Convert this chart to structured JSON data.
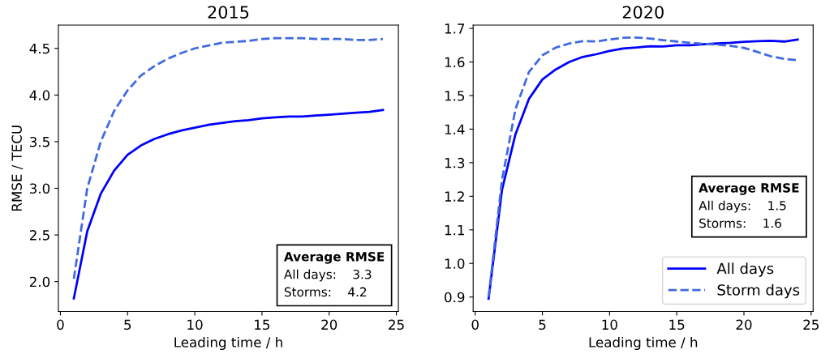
{
  "chart_data": [
    {
      "type": "line",
      "title": "2015",
      "xlabel": "Leading time / h",
      "ylabel": "RMSE / TECU",
      "x": [
        1,
        2,
        3,
        4,
        5,
        6,
        7,
        8,
        9,
        10,
        11,
        12,
        13,
        14,
        15,
        16,
        17,
        18,
        19,
        20,
        21,
        22,
        23,
        24
      ],
      "series": [
        {
          "color": "#0000ff",
          "line_style": "solid",
          "values": [
            1.82,
            2.54,
            2.94,
            3.19,
            3.36,
            3.46,
            3.53,
            3.58,
            3.62,
            3.65,
            3.68,
            3.7,
            3.72,
            3.73,
            3.75,
            3.76,
            3.77,
            3.77,
            3.78,
            3.79,
            3.8,
            3.81,
            3.82,
            3.84
          ]
        },
        {
          "color": "#4169e1",
          "line_style": "dashed",
          "values": [
            2.03,
            3.0,
            3.5,
            3.83,
            4.05,
            4.21,
            4.31,
            4.39,
            4.45,
            4.5,
            4.53,
            4.56,
            4.57,
            4.58,
            4.6,
            4.61,
            4.61,
            4.61,
            4.6,
            4.6,
            4.6,
            4.59,
            4.59,
            4.6
          ]
        }
      ],
      "xlim": [
        -0.15,
        25.15
      ],
      "xticks": [
        0,
        5,
        10,
        15,
        20,
        25
      ],
      "ylim": [
        1.68,
        4.75
      ],
      "yticks": [
        {
          "value": 2,
          "label": "2.0"
        },
        2.5,
        {
          "value": 3,
          "label": "3.0"
        },
        3.5,
        {
          "value": 4,
          "label": "4.0"
        },
        4.5
      ],
      "annotations": [
        "Average RMSE",
        "All days:    3.3",
        "Storms:    4.2"
      ]
    },
    {
      "type": "line",
      "title": "2020",
      "xlabel": "Leading time / h",
      "x": [
        1,
        2,
        3,
        4,
        5,
        6,
        7,
        8,
        9,
        10,
        11,
        12,
        13,
        14,
        15,
        16,
        17,
        18,
        19,
        20,
        21,
        22,
        23,
        24
      ],
      "series": [
        {
          "name": "All days",
          "color": "#0000ff",
          "line_style": "solid",
          "values": [
            0.895,
            1.22,
            1.385,
            1.49,
            1.548,
            1.578,
            1.6,
            1.615,
            1.623,
            1.633,
            1.64,
            1.643,
            1.647,
            1.646,
            1.65,
            1.65,
            1.653,
            1.655,
            1.657,
            1.66,
            1.662,
            1.663,
            1.661,
            1.667
          ]
        },
        {
          "name": "Storm days",
          "color": "#4169e1",
          "line_style": "dashed",
          "values": [
            0.9,
            1.25,
            1.46,
            1.57,
            1.62,
            1.643,
            1.655,
            1.662,
            1.661,
            1.667,
            1.672,
            1.673,
            1.67,
            1.665,
            1.661,
            1.657,
            1.654,
            1.652,
            1.648,
            1.642,
            1.63,
            1.617,
            1.609,
            1.605
          ]
        }
      ],
      "xlim": [
        -0.15,
        25.15
      ],
      "xticks": [
        0,
        5,
        10,
        15,
        20,
        25
      ],
      "ylim": [
        0.857,
        1.71
      ],
      "yticks": [
        0.9,
        {
          "value": 1,
          "label": "1.0"
        },
        1.1,
        1.2,
        1.3,
        1.4,
        1.5,
        1.6,
        1.7
      ],
      "legend": "bottom right",
      "annotations": [
        "Average RMSE",
        "All days:    1.5",
        "Storms:    1.6"
      ]
    }
  ]
}
